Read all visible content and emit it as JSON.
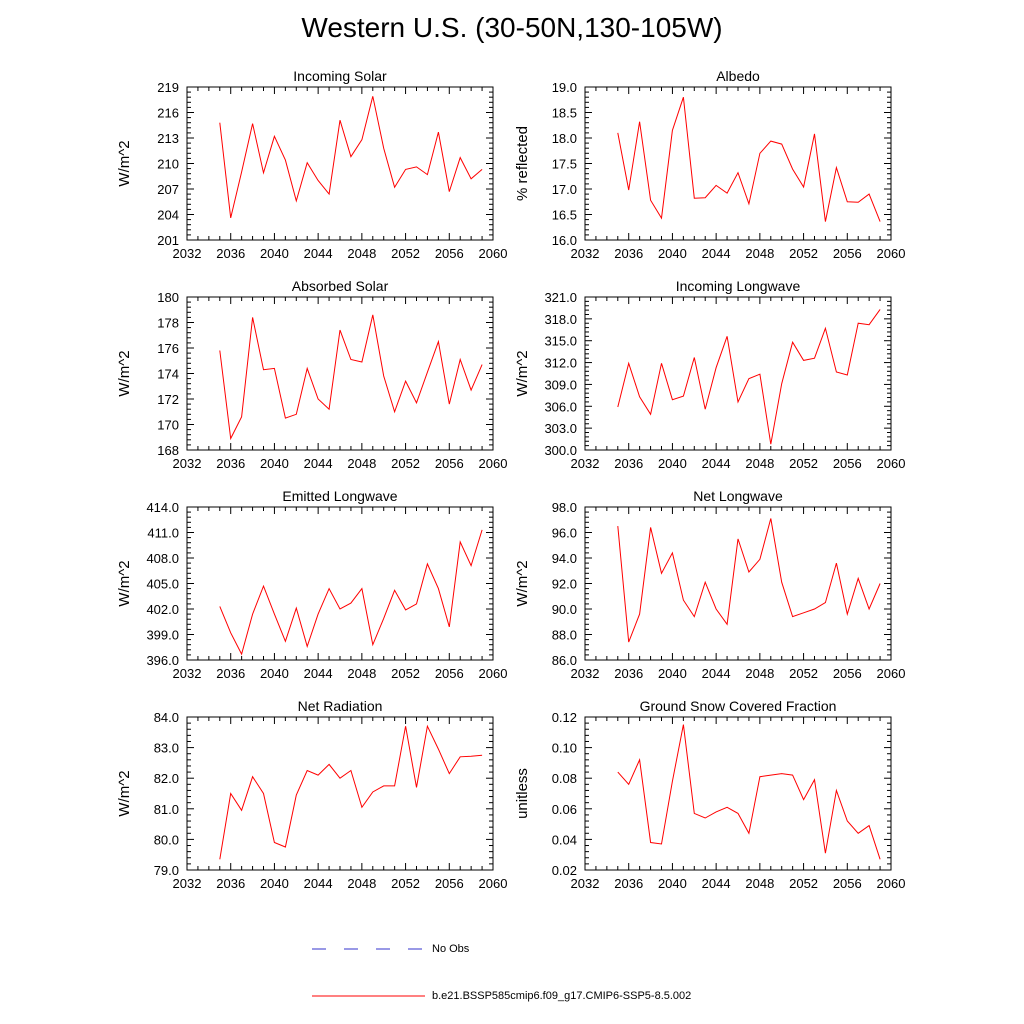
{
  "figure": {
    "title": "Western U.S. (30-50N,130-105W)",
    "legend": {
      "obs_label": "No Obs",
      "obs_color": "#3333cc",
      "model_label": "b.e21.BSSP585cmip6.f09_g17.CMIP6-SSP5-8.5.002",
      "model_color": "#ff0000"
    }
  },
  "chart_data": [
    {
      "type": "line",
      "title": "Incoming Solar",
      "ylabel": "W/m^2",
      "xlim": [
        2032,
        2060
      ],
      "ylim": [
        201,
        219
      ],
      "xticks": [
        "2032",
        "2036",
        "2040",
        "2044",
        "2048",
        "2052",
        "2056",
        "2060"
      ],
      "yticks": [
        "201",
        "204",
        "207",
        "210",
        "213",
        "216",
        "219"
      ],
      "x": [
        2035,
        2036,
        2037,
        2038,
        2039,
        2040,
        2041,
        2042,
        2043,
        2044,
        2045,
        2046,
        2047,
        2048,
        2049,
        2050,
        2051,
        2052,
        2053,
        2054,
        2055,
        2056,
        2057,
        2058,
        2059
      ],
      "series": [
        {
          "values": [
            214.8,
            203.6,
            209.0,
            214.7,
            208.9,
            213.2,
            210.4,
            205.6,
            210.1,
            208.0,
            206.4,
            215.1,
            210.8,
            212.8,
            217.9,
            211.8,
            207.2,
            209.3,
            209.6,
            208.7,
            213.7,
            206.7,
            210.7,
            208.2,
            209.3
          ]
        }
      ],
      "grid": false
    },
    {
      "type": "line",
      "title": "Albedo",
      "ylabel": "% reflected",
      "xlim": [
        2032,
        2060
      ],
      "ylim": [
        16.0,
        19.0
      ],
      "xticks": [
        "2032",
        "2036",
        "2040",
        "2044",
        "2048",
        "2052",
        "2056",
        "2060"
      ],
      "yticks": [
        "16.0",
        "16.5",
        "17.0",
        "17.5",
        "18.0",
        "18.5",
        "19.0"
      ],
      "x": [
        2035,
        2036,
        2037,
        2038,
        2039,
        2040,
        2041,
        2042,
        2043,
        2044,
        2045,
        2046,
        2047,
        2048,
        2049,
        2050,
        2051,
        2052,
        2053,
        2054,
        2055,
        2056,
        2057,
        2058,
        2059
      ],
      "series": [
        {
          "values": [
            18.1,
            16.98,
            18.32,
            16.78,
            16.43,
            18.15,
            18.8,
            16.82,
            16.83,
            17.07,
            16.92,
            17.32,
            16.71,
            17.7,
            17.94,
            17.88,
            17.39,
            17.04,
            18.08,
            16.36,
            17.42,
            16.75,
            16.74,
            16.9,
            16.36
          ]
        }
      ],
      "grid": false
    },
    {
      "type": "line",
      "title": "Absorbed Solar",
      "ylabel": "W/m^2",
      "xlim": [
        2032,
        2060
      ],
      "ylim": [
        168,
        180
      ],
      "xticks": [
        "2032",
        "2036",
        "2040",
        "2044",
        "2048",
        "2052",
        "2056",
        "2060"
      ],
      "yticks": [
        "168",
        "170",
        "172",
        "174",
        "176",
        "178",
        "180"
      ],
      "x": [
        2035,
        2036,
        2037,
        2038,
        2039,
        2040,
        2041,
        2042,
        2043,
        2044,
        2045,
        2046,
        2047,
        2048,
        2049,
        2050,
        2051,
        2052,
        2053,
        2054,
        2055,
        2056,
        2057,
        2058,
        2059
      ],
      "series": [
        {
          "values": [
            175.8,
            168.9,
            170.6,
            178.4,
            174.3,
            174.4,
            170.5,
            170.8,
            174.4,
            172.0,
            171.2,
            177.4,
            175.1,
            174.9,
            178.6,
            173.8,
            171.0,
            173.4,
            171.7,
            174.1,
            176.5,
            171.6,
            175.1,
            172.7,
            174.7
          ]
        }
      ],
      "grid": false
    },
    {
      "type": "line",
      "title": "Incoming Longwave",
      "ylabel": "W/m^2",
      "xlim": [
        2032,
        2060
      ],
      "ylim": [
        300.0,
        321.0
      ],
      "xticks": [
        "2032",
        "2036",
        "2040",
        "2044",
        "2048",
        "2052",
        "2056",
        "2060"
      ],
      "yticks": [
        "300.0",
        "303.0",
        "306.0",
        "309.0",
        "312.0",
        "315.0",
        "318.0",
        "321.0"
      ],
      "x": [
        2035,
        2036,
        2037,
        2038,
        2039,
        2040,
        2041,
        2042,
        2043,
        2044,
        2045,
        2046,
        2047,
        2048,
        2049,
        2050,
        2051,
        2052,
        2053,
        2054,
        2055,
        2056,
        2057,
        2058,
        2059
      ],
      "series": [
        {
          "values": [
            305.9,
            311.9,
            307.3,
            304.9,
            311.9,
            306.9,
            307.4,
            312.7,
            305.6,
            311.3,
            315.6,
            306.6,
            309.8,
            310.4,
            300.8,
            309.1,
            314.8,
            312.3,
            312.6,
            316.7,
            310.7,
            310.3,
            317.4,
            317.2,
            319.3
          ]
        }
      ],
      "grid": false
    },
    {
      "type": "line",
      "title": "Emitted Longwave",
      "ylabel": "W/m^2",
      "xlim": [
        2032,
        2060
      ],
      "ylim": [
        396.0,
        414.0
      ],
      "xticks": [
        "2032",
        "2036",
        "2040",
        "2044",
        "2048",
        "2052",
        "2056",
        "2060"
      ],
      "yticks": [
        "396.0",
        "399.0",
        "402.0",
        "405.0",
        "408.0",
        "411.0",
        "414.0"
      ],
      "x": [
        2035,
        2036,
        2037,
        2038,
        2039,
        2040,
        2041,
        2042,
        2043,
        2044,
        2045,
        2046,
        2047,
        2048,
        2049,
        2050,
        2051,
        2052,
        2053,
        2054,
        2055,
        2056,
        2057,
        2058,
        2059
      ],
      "series": [
        {
          "values": [
            402.3,
            399.2,
            396.7,
            401.4,
            404.7,
            401.4,
            398.2,
            402.1,
            397.6,
            401.4,
            404.4,
            402.0,
            402.7,
            404.4,
            397.8,
            400.9,
            404.2,
            401.9,
            402.6,
            407.3,
            404.4,
            399.9,
            409.9,
            407.1,
            411.3
          ]
        }
      ],
      "grid": false
    },
    {
      "type": "line",
      "title": "Net Longwave",
      "ylabel": "W/m^2",
      "xlim": [
        2032,
        2060
      ],
      "ylim": [
        86.0,
        98.0
      ],
      "xticks": [
        "2032",
        "2036",
        "2040",
        "2044",
        "2048",
        "2052",
        "2056",
        "2060"
      ],
      "yticks": [
        "86.0",
        "88.0",
        "90.0",
        "92.0",
        "94.0",
        "96.0",
        "98.0"
      ],
      "x": [
        2035,
        2036,
        2037,
        2038,
        2039,
        2040,
        2041,
        2042,
        2043,
        2044,
        2045,
        2046,
        2047,
        2048,
        2049,
        2050,
        2051,
        2052,
        2053,
        2054,
        2055,
        2056,
        2057,
        2058,
        2059
      ],
      "series": [
        {
          "values": [
            96.5,
            87.4,
            89.6,
            96.4,
            92.8,
            94.4,
            90.7,
            89.4,
            92.1,
            90.0,
            88.8,
            95.5,
            92.9,
            93.9,
            97.1,
            92.1,
            89.4,
            89.7,
            90.0,
            90.5,
            93.6,
            89.6,
            92.4,
            90.0,
            92.0
          ]
        }
      ],
      "grid": false
    },
    {
      "type": "line",
      "title": "Net Radiation",
      "ylabel": "W/m^2",
      "xlim": [
        2032,
        2060
      ],
      "ylim": [
        79.0,
        84.0
      ],
      "xticks": [
        "2032",
        "2036",
        "2040",
        "2044",
        "2048",
        "2052",
        "2056",
        "2060"
      ],
      "yticks": [
        "79.0",
        "80.0",
        "81.0",
        "82.0",
        "83.0",
        "84.0"
      ],
      "x": [
        2035,
        2036,
        2037,
        2038,
        2039,
        2040,
        2041,
        2042,
        2043,
        2044,
        2045,
        2046,
        2047,
        2048,
        2049,
        2050,
        2051,
        2052,
        2053,
        2054,
        2055,
        2056,
        2057,
        2058,
        2059
      ],
      "series": [
        {
          "values": [
            79.35,
            81.5,
            80.95,
            82.05,
            81.5,
            79.9,
            79.75,
            81.45,
            82.25,
            82.1,
            82.45,
            82.0,
            82.25,
            81.05,
            81.55,
            81.75,
            81.75,
            83.7,
            81.7,
            83.7,
            82.95,
            82.15,
            82.7,
            82.72,
            82.75
          ]
        }
      ],
      "grid": false
    },
    {
      "type": "line",
      "title": "Ground Snow Covered Fraction",
      "ylabel": "unitless",
      "xlim": [
        2032,
        2060
      ],
      "ylim": [
        0.02,
        0.12
      ],
      "xticks": [
        "2032",
        "2036",
        "2040",
        "2044",
        "2048",
        "2052",
        "2056",
        "2060"
      ],
      "yticks": [
        "0.02",
        "0.04",
        "0.06",
        "0.08",
        "0.10",
        "0.12"
      ],
      "x": [
        2035,
        2036,
        2037,
        2038,
        2039,
        2040,
        2041,
        2042,
        2043,
        2044,
        2045,
        2046,
        2047,
        2048,
        2049,
        2050,
        2051,
        2052,
        2053,
        2054,
        2055,
        2056,
        2057,
        2058,
        2059
      ],
      "series": [
        {
          "values": [
            0.084,
            0.076,
            0.092,
            0.038,
            0.037,
            0.078,
            0.115,
            0.057,
            0.054,
            0.058,
            0.061,
            0.057,
            0.044,
            0.081,
            0.082,
            0.083,
            0.082,
            0.066,
            0.079,
            0.031,
            0.072,
            0.052,
            0.044,
            0.049,
            0.027
          ]
        }
      ],
      "grid": false
    }
  ]
}
